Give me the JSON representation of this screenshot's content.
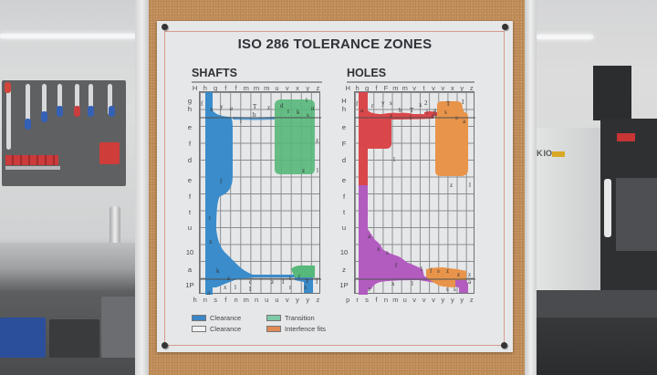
{
  "poster": {
    "title": "ISO 286 TOLERANCE ZONES",
    "shafts": {
      "heading": "SHAFTS",
      "top_labels": [
        "H",
        "h",
        "g",
        "f",
        "f",
        "m",
        "m",
        "m",
        "u",
        "v",
        "x",
        "y",
        "z"
      ],
      "bottom_labels": [
        "h",
        "n",
        "s",
        "f",
        "n",
        "m",
        "n",
        "u",
        "u",
        "v",
        "y",
        "y",
        "z"
      ],
      "row_labels": [
        "g",
        "h",
        "e",
        "f",
        "d",
        "e",
        "f",
        "t",
        "u",
        "10",
        "a",
        "1P"
      ]
    },
    "holes": {
      "heading": "HOLES",
      "top_labels": [
        "H",
        "h",
        "g",
        "f",
        "F",
        "m",
        "m",
        "v",
        "t",
        "v",
        "v",
        "x",
        "y",
        "z"
      ],
      "bottom_labels": [
        "p",
        "r",
        "s",
        "f",
        "n",
        "m",
        "u",
        "v",
        "v",
        "v",
        "y",
        "y",
        "y",
        "z"
      ],
      "row_labels": [
        "H",
        "h",
        "e",
        "F",
        "d",
        "e",
        "f",
        "t",
        "u",
        "10",
        "z",
        "1P"
      ]
    },
    "legend": [
      {
        "label": "Clearance",
        "color": "#3b86c6"
      },
      {
        "label": "Transition",
        "color": "#7fc9a6"
      },
      {
        "label": "Clearance",
        "color": "#f2f2f2"
      },
      {
        "label": "Interfence fits",
        "color": "#e08a55"
      }
    ],
    "colors": {
      "shaft_clearance": "#3a8ccb",
      "shaft_transition": "#56b87a",
      "hole_upper": "#d9474b",
      "hole_lower": "#b25cc0",
      "hole_interference": "#e8944a"
    }
  },
  "chart_data": {
    "type": "diagram",
    "title": "ISO 286 TOLERANCE ZONES",
    "panels": [
      {
        "name": "SHAFTS",
        "x_top": [
          "H",
          "h",
          "g",
          "f",
          "f",
          "m",
          "m",
          "m",
          "u",
          "v",
          "x",
          "y",
          "z"
        ],
        "x_bottom": [
          "h",
          "n",
          "s",
          "f",
          "n",
          "m",
          "n",
          "u",
          "u",
          "v",
          "y",
          "y",
          "z"
        ],
        "y_labels": [
          "g",
          "h",
          "e",
          "f",
          "d",
          "e",
          "f",
          "t",
          "u",
          "10",
          "a",
          "1P"
        ],
        "zones": [
          {
            "name": "Clearance",
            "color": "blue",
            "region": "column h, full height, flaring near rows h and a"
          },
          {
            "name": "Transition",
            "color": "green",
            "region": "columns u–z, rows g to d (upper block) and thin band near row a"
          }
        ]
      },
      {
        "name": "HOLES",
        "x_top": [
          "H",
          "h",
          "g",
          "f",
          "F",
          "m",
          "m",
          "v",
          "t",
          "v",
          "v",
          "x",
          "y",
          "z"
        ],
        "x_bottom": [
          "p",
          "r",
          "s",
          "f",
          "n",
          "m",
          "u",
          "v",
          "v",
          "v",
          "y",
          "y",
          "y",
          "z"
        ],
        "y_labels": [
          "H",
          "h",
          "e",
          "F",
          "d",
          "e",
          "f",
          "t",
          "u",
          "10",
          "z",
          "1P"
        ],
        "zones": [
          {
            "name": "Clearance (upper)",
            "color": "red",
            "region": "column h, rows H to e"
          },
          {
            "name": "Clearance (lower)",
            "color": "purple",
            "region": "column h, rows e to 1P, stepped toward z"
          },
          {
            "name": "Interference fits",
            "color": "orange",
            "region": "columns v–y, rows H to d; thin band near row z"
          }
        ]
      }
    ],
    "legend": [
      "Clearance",
      "Transition",
      "Clearance",
      "Interfence fits"
    ]
  }
}
